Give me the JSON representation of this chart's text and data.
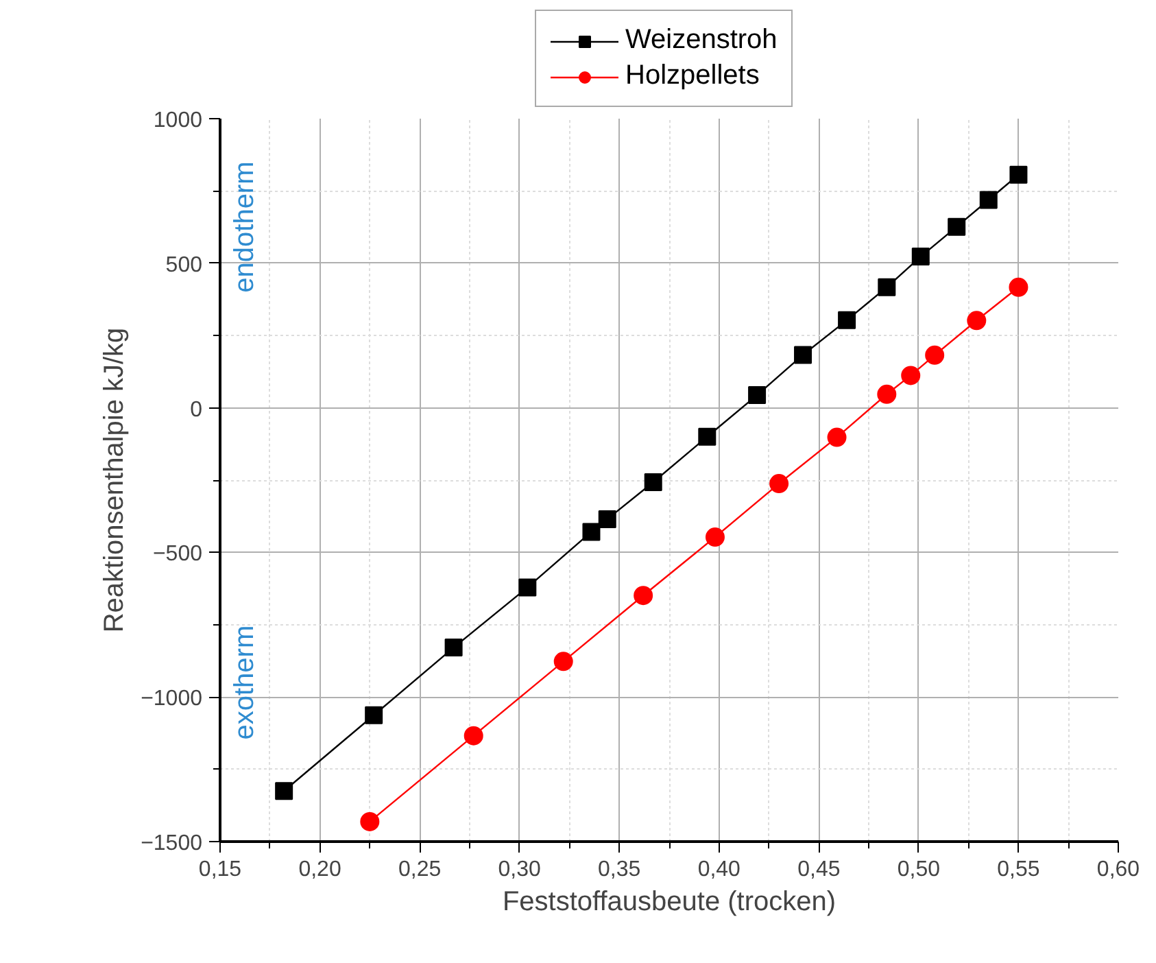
{
  "chart_data": {
    "type": "line",
    "xlabel": "Feststoffausbeute (trocken)",
    "ylabel": "Reaktionsenthalpie kJ/kg",
    "series": [
      {
        "name": "Weizenstroh",
        "color": "#000000",
        "marker": "square",
        "x": [
          0.182,
          0.227,
          0.267,
          0.304,
          0.336,
          0.344,
          0.367,
          0.394,
          0.419,
          0.442,
          0.464,
          0.484,
          0.501,
          0.519,
          0.535,
          0.55
        ],
        "values": [
          -1325,
          -1063,
          -829,
          -621,
          -429,
          -385,
          -257,
          -100,
          44,
          183,
          303,
          417,
          523,
          626,
          719,
          806
        ]
      },
      {
        "name": "Holzpellets",
        "color": "#ff0000",
        "marker": "circle",
        "x": [
          0.225,
          0.277,
          0.322,
          0.362,
          0.398,
          0.43,
          0.459,
          0.484,
          0.496,
          0.508,
          0.529,
          0.55
        ],
        "values": [
          -1431,
          -1134,
          -877,
          -649,
          -447,
          -262,
          -102,
          47,
          112,
          182,
          302,
          417
        ]
      }
    ],
    "xlim": [
      0.15,
      0.6
    ],
    "xticks": [
      {
        "value": 0.15,
        "label": "0,15"
      },
      {
        "value": 0.2,
        "label": "0,20"
      },
      {
        "value": 0.25,
        "label": "0,25"
      },
      {
        "value": 0.3,
        "label": "0,30"
      },
      {
        "value": 0.35,
        "label": "0,35"
      },
      {
        "value": 0.4,
        "label": "0,40"
      },
      {
        "value": 0.45,
        "label": "0,45"
      },
      {
        "value": 0.5,
        "label": "0,50"
      },
      {
        "value": 0.55,
        "label": "0,55"
      },
      {
        "value": 0.6,
        "label": "0,60"
      }
    ],
    "ylim": [
      -1500,
      1000
    ],
    "yticks": [
      -1500,
      -1000,
      -500,
      0,
      500,
      1000
    ],
    "grid": true,
    "legend": "top",
    "line_style": "solid",
    "annotations": [
      "endotherm",
      "exotherm"
    ]
  }
}
